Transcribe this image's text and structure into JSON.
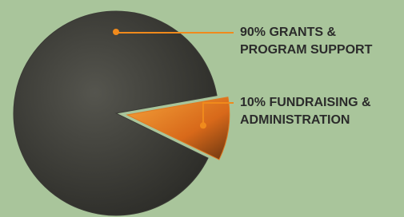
{
  "chart_data": {
    "type": "pie",
    "values": [
      90,
      10
    ],
    "value_labels": [
      "90% GRANTS & PROGRAM SUPPORT",
      "10% FUNDRAISING & ADMINISTRATION"
    ],
    "colors": [
      "#3b3b36",
      "#e07a22"
    ],
    "leader_color": "#f08a1c"
  }
}
